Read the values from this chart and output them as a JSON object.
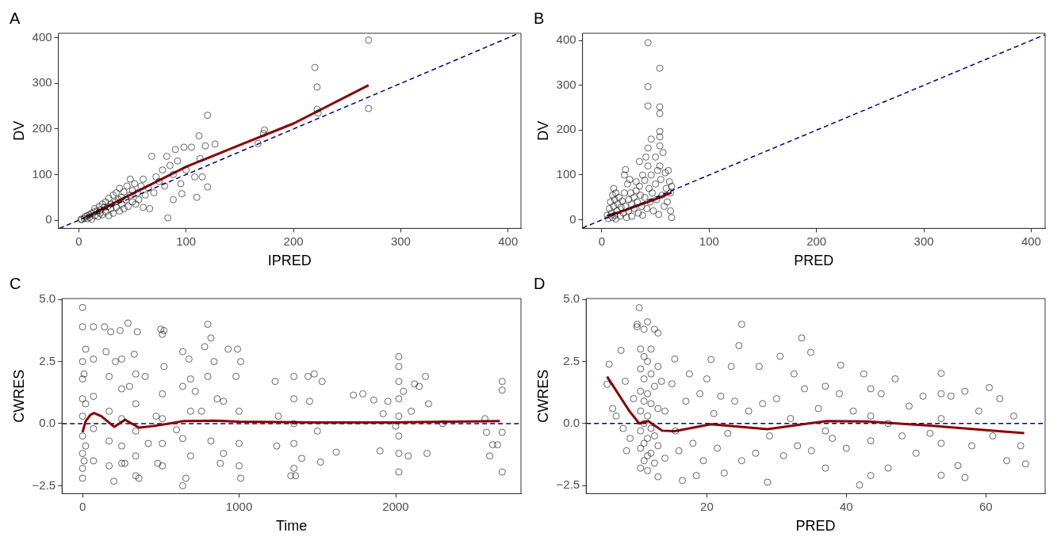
{
  "chart_data": [
    {
      "type": "scatter",
      "title": "A",
      "xlabel": "IPRED",
      "ylabel": "DV",
      "xlim": [
        -19,
        412
      ],
      "ylim": [
        -18,
        410
      ],
      "xticks": [
        0,
        100,
        200,
        300,
        400
      ],
      "yticks": [
        0,
        100,
        200,
        300,
        400
      ],
      "series": [
        {
          "type": "scatter",
          "color": "#000000",
          "marker": "circle",
          "x": [
            2,
            3,
            5,
            6,
            8,
            8,
            10,
            10,
            12,
            12,
            14,
            15,
            15,
            17,
            18,
            19,
            20,
            20,
            22,
            22,
            24,
            25,
            25,
            27,
            28,
            28,
            30,
            30,
            32,
            32,
            34,
            35,
            35,
            37,
            38,
            38,
            40,
            40,
            42,
            42,
            44,
            45,
            46,
            48,
            48,
            50,
            50,
            52,
            53,
            55,
            56,
            58,
            60,
            60,
            62,
            65,
            66,
            68,
            70,
            72,
            75,
            78,
            80,
            82,
            83,
            85,
            88,
            88,
            90,
            92,
            95,
            96,
            98,
            100,
            105,
            108,
            110,
            112,
            113,
            115,
            118,
            120,
            120,
            127,
            167,
            172,
            173,
            220,
            222,
            222,
            223,
            270,
            270
          ],
          "values": [
            2,
            1,
            4,
            8,
            3,
            10,
            12,
            6,
            15,
            2,
            18,
            10,
            25,
            20,
            8,
            30,
            15,
            22,
            35,
            12,
            28,
            18,
            40,
            30,
            10,
            48,
            25,
            35,
            55,
            15,
            40,
            28,
            60,
            45,
            20,
            70,
            35,
            50,
            62,
            25,
            45,
            75,
            30,
            55,
            90,
            40,
            65,
            80,
            35,
            60,
            45,
            75,
            90,
            28,
            55,
            70,
            25,
            140,
            60,
            95,
            85,
            110,
            75,
            140,
            5,
            120,
            45,
            100,
            155,
            130,
            80,
            58,
            160,
            110,
            160,
            95,
            50,
            185,
            135,
            95,
            163,
            230,
            73,
            167,
            168,
            190,
            198,
            335,
            292,
            243,
            235,
            395,
            245
          ]
        },
        {
          "type": "line",
          "color": "#8b0000",
          "marker": "none",
          "line_style": "solid",
          "x": [
            7,
            50,
            100,
            150,
            200,
            270
          ],
          "values": [
            7,
            58,
            117,
            165,
            212,
            296
          ]
        },
        {
          "type": "line",
          "color": "#00008b",
          "marker": "none",
          "line_style": "dashed",
          "x": [
            -18,
            410
          ],
          "values": [
            -18,
            410
          ]
        }
      ]
    },
    {
      "type": "scatter",
      "title": "B",
      "xlabel": "PRED",
      "ylabel": "DV",
      "xlim": [
        -18,
        413
      ],
      "ylim": [
        -19,
        416
      ],
      "xticks": [
        0,
        100,
        200,
        300,
        400
      ],
      "yticks": [
        0,
        100,
        200,
        300,
        400
      ],
      "series": [
        {
          "type": "scatter",
          "color": "#000000",
          "marker": "circle",
          "x": [
            5,
            6,
            7,
            8,
            9,
            10,
            10,
            11,
            11,
            12,
            12,
            13,
            13,
            14,
            15,
            16,
            17,
            18,
            19,
            20,
            21,
            21,
            22,
            22,
            23,
            24,
            25,
            25,
            26,
            27,
            28,
            28,
            30,
            30,
            32,
            32,
            33,
            34,
            35,
            35,
            36,
            37,
            38,
            38,
            40,
            40,
            41,
            42,
            43,
            43,
            43,
            43,
            43,
            44,
            45,
            46,
            46,
            47,
            48,
            50,
            50,
            51,
            52,
            53,
            54,
            54,
            54,
            54,
            54,
            54,
            54,
            55,
            56,
            57,
            58,
            59,
            60,
            61,
            62,
            63,
            64,
            64,
            65,
            65
          ],
          "values": [
            10,
            3,
            25,
            40,
            15,
            55,
            5,
            70,
            30,
            10,
            45,
            60,
            2,
            20,
            35,
            50,
            8,
            28,
            42,
            15,
            100,
            60,
            30,
            112,
            5,
            80,
            45,
            20,
            90,
            60,
            35,
            8,
            50,
            25,
            85,
            65,
            40,
            15,
            130,
            75,
            55,
            30,
            100,
            10,
            88,
            50,
            140,
            25,
            395,
            297,
            254,
            160,
            120,
            70,
            40,
            180,
            100,
            60,
            20,
            140,
            80,
            45,
            110,
            12,
            338,
            252,
            237,
            197,
            185,
            165,
            120,
            90,
            55,
            150,
            30,
            105,
            70,
            40,
            110,
            85,
            60,
            20,
            75,
            5
          ]
        },
        {
          "type": "line",
          "color": "#8b0000",
          "marker": "none",
          "line_style": "solid",
          "x": [
            5,
            20,
            35,
            50,
            65
          ],
          "values": [
            9,
            20,
            33,
            46,
            61
          ]
        },
        {
          "type": "line",
          "color": "#00008b",
          "marker": "none",
          "line_style": "dashed",
          "x": [
            -18,
            413
          ],
          "values": [
            -18,
            413
          ]
        }
      ]
    },
    {
      "type": "scatter",
      "title": "C",
      "xlabel": "Time",
      "ylabel": "CWRES",
      "xlim": [
        -131,
        2800
      ],
      "ylim": [
        -2.82,
        5.04
      ],
      "xticks": [
        0,
        1000,
        2000
      ],
      "yticks": [
        {
          "value": -2.5,
          "label": "−2.5"
        },
        {
          "value": 0,
          "label": "0.0"
        },
        {
          "value": 2.5,
          "label": "2.5"
        },
        {
          "value": 5,
          "label": "5.0"
        }
      ],
      "ref_lines": [
        {
          "axis": "y",
          "value": 0,
          "color": "#00008b",
          "line_style": "dashed"
        }
      ],
      "series": [
        {
          "type": "scatter",
          "color": "#000000",
          "marker": "circle",
          "x": [
            0,
            0,
            0,
            0,
            0,
            0,
            0,
            0,
            0,
            0,
            10,
            10,
            20,
            20,
            20,
            70,
            70,
            70,
            70,
            70,
            140,
            150,
            170,
            170,
            170,
            170,
            180,
            200,
            210,
            240,
            250,
            250,
            250,
            250,
            250,
            270,
            290,
            300,
            330,
            340,
            340,
            340,
            340,
            340,
            350,
            360,
            400,
            420,
            470,
            480,
            500,
            510,
            520,
            510,
            510,
            510,
            510,
            520,
            600,
            640,
            640,
            640,
            640,
            660,
            680,
            690,
            690,
            690,
            720,
            760,
            780,
            800,
            800,
            820,
            820,
            840,
            860,
            880,
            900,
            900,
            930,
            980,
            990,
            1000,
            1000,
            1000,
            1010,
            1010,
            1230,
            1240,
            1250,
            1330,
            1350,
            1350,
            1350,
            1350,
            1350,
            1360,
            1400,
            1440,
            1450,
            1480,
            1500,
            1520,
            1530,
            1620,
            1730,
            1790,
            1860,
            1900,
            1920,
            1950,
            2000,
            2020,
            2020,
            2020,
            2020,
            2020,
            2020,
            2020,
            2020,
            2050,
            2080,
            2100,
            2120,
            2150,
            2190,
            2200,
            2210,
            2300,
            2570,
            2580,
            2600,
            2620,
            2650,
            2680,
            2680,
            2680,
            2680
          ],
          "values": [
            4.68,
            3.9,
            2.5,
            1.8,
            1.0,
            0.3,
            -0.5,
            -1.2,
            -1.8,
            -2.2,
            2.0,
            -1.5,
            3.0,
            0.8,
            -0.9,
            3.9,
            2.6,
            1.1,
            -0.2,
            -1.5,
            3.9,
            2.9,
            1.9,
            0.5,
            -0.7,
            -1.7,
            3.7,
            -2.32,
            2.5,
            3.75,
            2.6,
            1.4,
            0.2,
            -0.9,
            -1.6,
            -1.6,
            4.05,
            1.5,
            2.8,
            2.0,
            0.8,
            -0.3,
            -1.3,
            -2.1,
            3.7,
            -2.2,
            1.9,
            -0.8,
            0.3,
            -1.6,
            3.8,
            3.6,
            2.3,
            1.2,
            0.2,
            -0.8,
            -1.7,
            3.75,
            -0.25,
            2.9,
            1.5,
            -0.6,
            -2.5,
            -2.2,
            2.6,
            1.8,
            0.5,
            -1.3,
            1.3,
            0.5,
            3.1,
            4.0,
            1.9,
            3.45,
            -0.7,
            2.5,
            1.0,
            -1.6,
            0.9,
            -1.2,
            3.0,
            1.9,
            3.0,
            0.5,
            -0.8,
            -1.7,
            -2.2,
            2.5,
            1.7,
            -0.9,
            0.3,
            -2.1,
            1.9,
            1.0,
            0.0,
            -0.8,
            -1.8,
            -2.1,
            -1.4,
            1.9,
            0.9,
            2.0,
            -0.3,
            -1.55,
            1.7,
            -1.15,
            1.15,
            1.2,
            0.95,
            -1.1,
            0.4,
            0.9,
            -0.1,
            2.7,
            2.3,
            1.7,
            1.0,
            0.3,
            -0.5,
            -1.2,
            -1.95,
            1.3,
            -1.3,
            0.5,
            1.6,
            1.5,
            1.9,
            -1.2,
            0.8,
            0.0,
            0.2,
            -0.35,
            -1.3,
            -0.85,
            -0.85,
            1.7,
            1.35,
            -0.35,
            -1.95
          ]
        },
        {
          "type": "line",
          "color": "#8b0000",
          "marker": "none",
          "line_style": "solid",
          "x": [
            0,
            20,
            50,
            73,
            120,
            203,
            272,
            300,
            361,
            450,
            550,
            640,
            850,
            1000,
            1500,
            2000,
            2665
          ],
          "values": [
            -0.35,
            0.1,
            0.35,
            0.43,
            0.3,
            -0.13,
            0.16,
            0.05,
            -0.16,
            -0.1,
            0.0,
            0.1,
            0.12,
            0.08,
            0.05,
            0.05,
            0.1
          ]
        }
      ]
    },
    {
      "type": "scatter",
      "title": "D",
      "xlabel": "PRED",
      "ylabel": "CWRES",
      "xlim": [
        2.7,
        68.5
      ],
      "ylim": [
        -2.83,
        5.04
      ],
      "xticks": [
        20,
        40,
        60
      ],
      "yticks": [
        {
          "value": -2.5,
          "label": "−2.5"
        },
        {
          "value": 0,
          "label": "0.0"
        },
        {
          "value": 2.5,
          "label": "2.5"
        },
        {
          "value": 5,
          "label": "5.0"
        }
      ],
      "ref_lines": [
        {
          "axis": "y",
          "value": 0,
          "color": "#00008b",
          "line_style": "dashed"
        }
      ],
      "series": [
        {
          "type": "scatter",
          "color": "#000000",
          "marker": "circle",
          "x": [
            5.7,
            6,
            6.5,
            7,
            7.7,
            8,
            8.3,
            8.5,
            9,
            9.5,
            10,
            10,
            10.3,
            10.5,
            10.5,
            10.5,
            10.5,
            10.5,
            10.5,
            10.5,
            11,
            11,
            11,
            11,
            11,
            11,
            11,
            11.5,
            11.5,
            11.5,
            11.5,
            11.5,
            11.5,
            11.5,
            12,
            12,
            12,
            12,
            12,
            12.5,
            12.5,
            12.5,
            12.5,
            13,
            13,
            13,
            13,
            13,
            13.5,
            14,
            14,
            15,
            15.4,
            15.5,
            16,
            16.5,
            17,
            17.5,
            18,
            18.5,
            19,
            19.5,
            20,
            20.6,
            21,
            21.5,
            22,
            22.5,
            23,
            23.5,
            24,
            24.6,
            25,
            25,
            26,
            27,
            27.5,
            28,
            28.7,
            29,
            30,
            30.5,
            31,
            32,
            32.5,
            33,
            33.6,
            34,
            34.9,
            35,
            36,
            37,
            37,
            37,
            38,
            39,
            39.2,
            40,
            41,
            41.9,
            42.5,
            43.5,
            43.5,
            43.5,
            43.5,
            45,
            46,
            46,
            47,
            48,
            49,
            50,
            51,
            52,
            53.6,
            53.6,
            53.6,
            53.6,
            53.6,
            55,
            56,
            57,
            57,
            58,
            59,
            60.5,
            61,
            62,
            63,
            64,
            65,
            65.7
          ],
          "values": [
            1.58,
            2.39,
            0.6,
            0.3,
            2.95,
            -0.2,
            1.7,
            -1.1,
            -0.6,
            1.0,
            4.0,
            3.9,
            4.67,
            3.0,
            2.2,
            1.3,
            0.5,
            -0.3,
            -1.0,
            -1.8,
            3.8,
            2.7,
            1.8,
            0.9,
            0.0,
            -0.8,
            -1.5,
            4.1,
            2.5,
            1.2,
            0.3,
            -0.6,
            -1.3,
            -1.9,
            3.0,
            2.0,
            0.8,
            -0.2,
            -1.2,
            3.8,
            1.5,
            -0.5,
            -1.6,
            3.65,
            2.3,
            0.6,
            -0.9,
            -2.15,
            1.7,
            0.5,
            -1.4,
            1.6,
            2.6,
            -0.3,
            -1.1,
            -2.3,
            0.9,
            2.0,
            -0.8,
            -2.1,
            1.2,
            -1.5,
            1.8,
            2.58,
            0.4,
            -1.0,
            1.1,
            -2.0,
            -0.4,
            2.3,
            0.9,
            3.14,
            4.0,
            -1.5,
            0.5,
            -1.2,
            2.3,
            0.8,
            -2.37,
            -0.5,
            1.0,
            2.71,
            -1.3,
            0.2,
            2.0,
            -0.9,
            3.45,
            1.4,
            2.87,
            -1.1,
            0.6,
            1.5,
            -0.3,
            -1.8,
            -0.6,
            1.2,
            2.35,
            -1.0,
            0.5,
            -2.48,
            2.0,
            1.4,
            0.3,
            -0.7,
            -2.1,
            1.2,
            0.0,
            -1.8,
            1.8,
            -0.5,
            0.7,
            -1.2,
            1.1,
            -0.4,
            2.02,
            1.2,
            0.2,
            -0.8,
            -2.09,
            1.1,
            -1.7,
            -2.18,
            1.3,
            -0.9,
            0.5,
            1.45,
            -0.5,
            1.0,
            -1.5,
            0.3,
            -0.9,
            -1.63
          ]
        },
        {
          "type": "line",
          "color": "#8b0000",
          "marker": "none",
          "line_style": "solid",
          "x": [
            5.7,
            8.9,
            10.3,
            11.6,
            13.6,
            15.4,
            20.6,
            28.7,
            37.2,
            43,
            52,
            65.5
          ],
          "values": [
            1.89,
            0.5,
            0,
            0.1,
            -0.29,
            -0.31,
            -0.03,
            -0.23,
            0.1,
            0.08,
            -0.09,
            -0.39
          ]
        }
      ]
    }
  ]
}
